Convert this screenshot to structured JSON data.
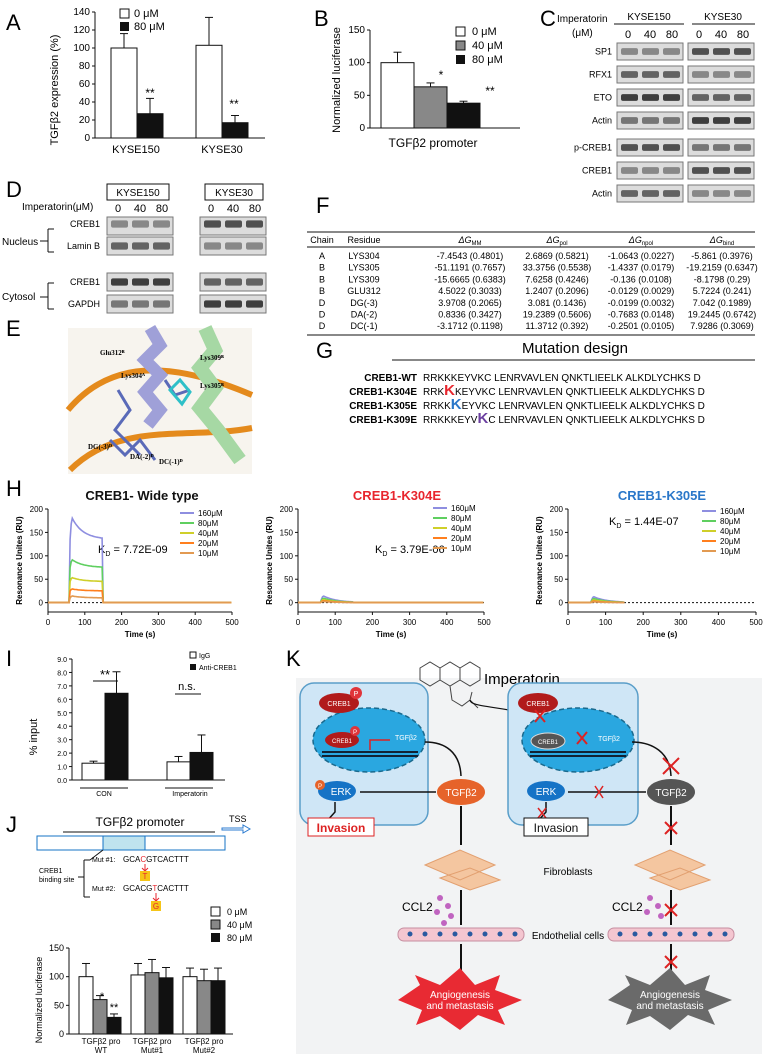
{
  "panels": {
    "A": {
      "letter": "A",
      "ylabel": "TGFβ2 expression (%)",
      "yticks": [
        "0",
        "20",
        "40",
        "60",
        "80",
        "100",
        "120",
        "140"
      ],
      "legend": [
        "0 μM",
        "80 μM"
      ],
      "groups": [
        "KYSE150",
        "KYSE30"
      ],
      "stars": [
        "**",
        "**"
      ]
    },
    "B": {
      "letter": "B",
      "ylabel": "Normalized luciferase",
      "yticks": [
        "0",
        "50",
        "100",
        "150"
      ],
      "legend": [
        "0 μM",
        "40 μM",
        "80 μM"
      ],
      "xlabel": "TGFβ2 promoter",
      "stars": [
        "*",
        "**"
      ]
    },
    "C": {
      "letter": "C",
      "treatment": "Imperatorin",
      "unit": "(μM)",
      "cells": [
        "KYSE150",
        "KYSE30"
      ],
      "doses": [
        "0",
        "40",
        "80"
      ],
      "rows": [
        "SP1",
        "RFX1",
        "ETO",
        "Actin",
        "p-CREB1",
        "CREB1",
        "Actin"
      ]
    },
    "D": {
      "letter": "D",
      "treatment": "Imperatorin(μM)",
      "cells": [
        "KYSE150",
        "KYSE30"
      ],
      "doses": [
        "0",
        "40",
        "80"
      ],
      "nucleus": "Nucleus",
      "cytosol": "Cytosol",
      "rows": [
        "CREB1",
        "Lamin B",
        "CREB1",
        "GAPDH"
      ]
    },
    "E": {
      "letter": "E",
      "labels": [
        "Glu312ᴮ",
        "Lys309ᴮ",
        "Lys304ᴬ",
        "Lys305ᴮ",
        "DG(-3)ᴰ",
        "DA(-2)ᴰ",
        "DC(-1)ᴰ"
      ]
    },
    "F": {
      "letter": "F",
      "headers": [
        "Chain",
        "Residue",
        "ΔG_MM",
        "ΔG_pol",
        "ΔG_npol",
        "ΔG_bind"
      ],
      "rows": [
        [
          "A",
          "LYS304",
          "-7.4543 (0.4801)",
          "2.6869 (0.5821)",
          "-1.0643 (0.0227)",
          "-5.861 (0.3976)"
        ],
        [
          "B",
          "LYS305",
          "-51.1191 (0.7657)",
          "33.3756 (0.5538)",
          "-1.4337 (0.0179)",
          "-19.2159 (0.6347)"
        ],
        [
          "B",
          "LYS309",
          "-15.6665 (0.6383)",
          "7.6258 (0.4246)",
          "-0.136 (0.0108)",
          "-8.1798 (0.29)"
        ],
        [
          "B",
          "GLU312",
          "4.5022 (0.3033)",
          "1.2407 (0.2096)",
          "-0.0129 (0.0029)",
          "5.7224 (0.241)"
        ],
        [
          "D",
          "DG(-3)",
          "3.9708 (0.2065)",
          "3.081 (0.1436)",
          "-0.0199 (0.0032)",
          "7.042 (0.1989)"
        ],
        [
          "D",
          "DA(-2)",
          "0.8336 (0.3427)",
          "19.2389 (0.5606)",
          "-0.7683 (0.0148)",
          "19.2445 (0.6742)"
        ],
        [
          "D",
          "DC(-1)",
          "-3.1712 (0.1198)",
          "11.3712 (0.392)",
          "-0.2501 (0.0105)",
          "7.9286 (0.3069)"
        ]
      ]
    },
    "G": {
      "letter": "G",
      "title": "Mutation design",
      "rows": [
        {
          "name": "CREB1-WT",
          "pre": "RRKKKEYVKC",
          "mut": "",
          "post": "",
          "tail": " LENRVAVLEN QNKTLIEELK ALKDLYCHKS D"
        },
        {
          "name": "CREB1-K304E",
          "pre": "RRK",
          "mut": "K",
          "post": "KEYVKC",
          "tail": " LENRVAVLEN QNKTLIEELK ALKDLYCHKS D"
        },
        {
          "name": "CREB1-K305E",
          "pre": "RRKK",
          "mut": "K",
          "post": "EYVKC",
          "tail": " LENRVAVLEN QNKTLIEELK ALKDLYCHKS D"
        },
        {
          "name": "CREB1-K309E",
          "pre": "RRKKKEYV",
          "mut": "K",
          "post": "C",
          "tail": " LENRVAVLEN QNKTLIEELK ALKDLYCHKS D"
        }
      ]
    },
    "H": {
      "letter": "H",
      "charts": [
        {
          "title": "CREB1- Wide type",
          "kd_label": "K",
          "kd_sub": "D",
          "kd_value": " = 7.72E-09",
          "ylabel": "Resonance Unites (RU)",
          "xlabel": "Time (s)"
        },
        {
          "title": "CREB1-K304E",
          "kd_label": "K",
          "kd_sub": "D",
          "kd_value": " = 3.79E-06",
          "ylabel": "Resonance Unites (RU)",
          "xlabel": "Time (s)"
        },
        {
          "title": "CREB1-K305E",
          "kd_label": "K",
          "kd_sub": "D",
          "kd_value": " = 1.44E-07",
          "ylabel": "Resonance Unites (RU)",
          "xlabel": "Time (s)"
        }
      ],
      "legend": [
        "160μM",
        "80μM",
        "40μM",
        "20μM",
        "10μM"
      ]
    },
    "I": {
      "letter": "I",
      "ylabel": "% input",
      "legend": [
        "IgG",
        "Anti-CREB1"
      ],
      "groups": [
        "CON",
        "Imperatorin"
      ],
      "stars": "**",
      "ns": "n.s."
    },
    "J": {
      "letter": "J",
      "promoter": "TGFβ2 promoter",
      "tss": "TSS",
      "site": "CREB1\nbinding site",
      "mut1_label": "Mut #1:",
      "mut1_pre": "GCA",
      "mut1_mut": "C",
      "mut1_post": "GTCACTTT",
      "mut1_sub": "T",
      "mut2_label": "Mut #2:",
      "mut2_pre": "GCACG",
      "mut2_mut": "T",
      "mut2_post": "CACTTT",
      "mut2_sub": "G",
      "ylabel": "Normalized luciferase",
      "legend": [
        "0 μM",
        "40 μM",
        "80 μM"
      ],
      "groups": [
        "TGFβ2 pro\nWT",
        "TGFβ2 pro\nMut#1",
        "TGFβ2 pro\nMut#2"
      ],
      "stars": [
        "*",
        "**"
      ]
    },
    "K": {
      "letter": "K",
      "drug": "Imperatorin",
      "creb1": "CREB1",
      "tgfb2": "TGFβ2",
      "erk": "ERK",
      "invasion": "Invasion",
      "fibroblasts": "Fibroblasts",
      "ccl2": "CCL2",
      "endo": "Endothelial cells",
      "angio": "Angiogenesis\nand metastasis",
      "p": "P"
    }
  },
  "chart_data": [
    {
      "type": "bar",
      "id": "A",
      "categories": [
        "KYSE150",
        "KYSE30"
      ],
      "series": [
        {
          "name": "0 μM",
          "values": [
            100,
            103
          ],
          "err": [
            16,
            31
          ]
        },
        {
          "name": "80 μM",
          "values": [
            27,
            17
          ],
          "err": [
            17,
            8
          ]
        }
      ],
      "ylabel": "TGFβ2 expression (%)",
      "ylim": [
        0,
        140
      ]
    },
    {
      "type": "bar",
      "id": "B",
      "categories": [
        "TGFβ2 promoter"
      ],
      "series": [
        {
          "name": "0 μM",
          "values": [
            100
          ],
          "err": [
            16
          ]
        },
        {
          "name": "40 μM",
          "values": [
            63
          ],
          "err": [
            6
          ]
        },
        {
          "name": "80 μM",
          "values": [
            38
          ],
          "err": [
            3
          ]
        }
      ],
      "ylabel": "Normalized luciferase",
      "ylim": [
        0,
        150
      ]
    },
    {
      "type": "line",
      "id": "H-WT",
      "x_range": [
        0,
        500
      ],
      "ylim": [
        -20,
        200
      ],
      "yticks": [
        0,
        50,
        100,
        150,
        200
      ],
      "xticks": [
        0,
        100,
        200,
        300,
        400,
        500
      ],
      "series": [
        {
          "name": "160μM",
          "peak": 190,
          "plateau": 135
        },
        {
          "name": "80μM",
          "peak": 95,
          "plateau": 75
        },
        {
          "name": "40μM",
          "peak": 55,
          "plateau": 45
        },
        {
          "name": "20μM",
          "peak": 30,
          "plateau": 25
        },
        {
          "name": "10μM",
          "peak": 15,
          "plateau": 10
        }
      ],
      "assoc_start": 60,
      "dissoc_start": 150
    },
    {
      "type": "line",
      "id": "H-K304E",
      "x_range": [
        0,
        500
      ],
      "ylim": [
        -20,
        200
      ],
      "yticks": [
        0,
        50,
        100,
        150,
        200
      ],
      "xticks": [
        0,
        100,
        200,
        300,
        400,
        500
      ],
      "series": [
        {
          "name": "160μM",
          "peak": 18
        },
        {
          "name": "80μM",
          "peak": 12
        },
        {
          "name": "40μM",
          "peak": 8
        },
        {
          "name": "20μM",
          "peak": 5
        },
        {
          "name": "10μM",
          "peak": 3
        }
      ],
      "assoc_start": 60,
      "dissoc_start": 150
    },
    {
      "type": "line",
      "id": "H-K305E",
      "x_range": [
        0,
        500
      ],
      "ylim": [
        -20,
        200
      ],
      "yticks": [
        0,
        50,
        100,
        150,
        200
      ],
      "xticks": [
        0,
        100,
        200,
        300,
        400,
        500
      ],
      "series": [
        {
          "name": "160μM",
          "peak": 16
        },
        {
          "name": "80μM",
          "peak": 11
        },
        {
          "name": "40μM",
          "peak": 7
        },
        {
          "name": "20μM",
          "peak": 4
        },
        {
          "name": "10μM",
          "peak": 2
        }
      ],
      "assoc_start": 60,
      "dissoc_start": 150
    },
    {
      "type": "bar",
      "id": "I",
      "categories": [
        "CON",
        "Imperatorin"
      ],
      "series": [
        {
          "name": "IgG",
          "values": [
            1.25,
            1.35
          ],
          "err": [
            0.15,
            0.4
          ]
        },
        {
          "name": "Anti-CREB1",
          "values": [
            6.45,
            2.05
          ],
          "err": [
            1.6,
            1.3
          ]
        }
      ],
      "ylabel": "% input",
      "ylim": [
        0,
        9
      ],
      "yticks": [
        "0.0",
        "1.0",
        "2.0",
        "3.0",
        "4.0",
        "5.0",
        "6.0",
        "7.0",
        "8.0",
        "9.0"
      ]
    },
    {
      "type": "bar",
      "id": "J",
      "categories": [
        "TGFβ2 pro WT",
        "TGFβ2 pro Mut#1",
        "TGFβ2 pro Mut#2"
      ],
      "series": [
        {
          "name": "0 μM",
          "values": [
            100,
            103,
            100
          ],
          "err": [
            23,
            20,
            15
          ]
        },
        {
          "name": "40 μM",
          "values": [
            60,
            107,
            93
          ],
          "err": [
            7,
            23,
            20
          ]
        },
        {
          "name": "80 μM",
          "values": [
            29,
            98,
            93
          ],
          "err": [
            6,
            18,
            22
          ]
        }
      ],
      "ylabel": "Normalized luciferase",
      "ylim": [
        0,
        150
      ],
      "yticks": [
        "0",
        "50",
        "100",
        "150"
      ]
    }
  ],
  "colors": {
    "black": "#111111",
    "gray": "#888888",
    "white": "#ffffff",
    "wt_title": "#111111",
    "k304_title": "#e8262e",
    "k305_title": "#2a77c9",
    "k304_mut": "#e8262e",
    "k305_mut": "#2a77c9",
    "k309_mut": "#6b3fa0",
    "c160": "#8e8ee0",
    "c80": "#5fcf60",
    "c40": "#cfcf2a",
    "c20": "#ff7f1e",
    "c10": "#e29a52",
    "cell": "#cfe6f6",
    "nucleus": "#2aa7e0",
    "tgfb": "#e6632a",
    "erk": "#1573c6"
  }
}
